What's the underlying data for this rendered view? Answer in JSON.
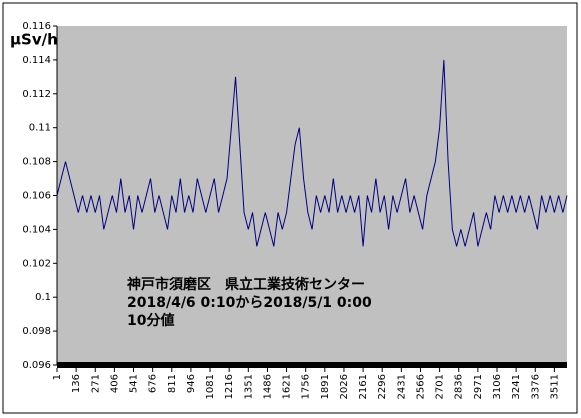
{
  "chart_data": {
    "type": "line",
    "title": "µSv/h",
    "annotations": [
      "神戸市須磨区　県立工業技術センター",
      "2018/4/6 0:10から2018/5/1 0:00",
      "10分値"
    ],
    "x": [
      1,
      31,
      61,
      91,
      121,
      151,
      181,
      211,
      241,
      271,
      301,
      331,
      361,
      391,
      421,
      451,
      481,
      511,
      541,
      571,
      601,
      631,
      661,
      691,
      721,
      751,
      781,
      811,
      841,
      871,
      901,
      931,
      961,
      991,
      1021,
      1051,
      1081,
      1111,
      1141,
      1171,
      1201,
      1231,
      1261,
      1291,
      1321,
      1351,
      1381,
      1411,
      1441,
      1471,
      1501,
      1531,
      1561,
      1591,
      1621,
      1651,
      1681,
      1711,
      1741,
      1771,
      1801,
      1831,
      1861,
      1891,
      1921,
      1951,
      1981,
      2011,
      2041,
      2071,
      2101,
      2131,
      2161,
      2191,
      2221,
      2251,
      2281,
      2311,
      2341,
      2371,
      2401,
      2431,
      2461,
      2491,
      2521,
      2551,
      2581,
      2611,
      2641,
      2671,
      2701,
      2731,
      2761,
      2791,
      2821,
      2851,
      2881,
      2911,
      2941,
      2971,
      3001,
      3031,
      3061,
      3091,
      3121,
      3151,
      3181,
      3211,
      3241,
      3271,
      3301,
      3331,
      3361,
      3391,
      3421,
      3451,
      3481,
      3511,
      3541,
      3571,
      3600
    ],
    "series": [
      {
        "color": "#000080",
        "values": [
          0.106,
          0.107,
          0.108,
          0.107,
          0.106,
          0.105,
          0.106,
          0.105,
          0.106,
          0.105,
          0.106,
          0.104,
          0.105,
          0.106,
          0.105,
          0.107,
          0.105,
          0.106,
          0.104,
          0.106,
          0.105,
          0.106,
          0.107,
          0.105,
          0.106,
          0.105,
          0.104,
          0.106,
          0.105,
          0.107,
          0.105,
          0.106,
          0.105,
          0.107,
          0.106,
          0.105,
          0.106,
          0.107,
          0.105,
          0.106,
          0.107,
          0.11,
          0.113,
          0.109,
          0.105,
          0.104,
          0.105,
          0.103,
          0.104,
          0.105,
          0.104,
          0.103,
          0.105,
          0.104,
          0.105,
          0.107,
          0.109,
          0.11,
          0.107,
          0.105,
          0.104,
          0.106,
          0.105,
          0.106,
          0.105,
          0.107,
          0.105,
          0.106,
          0.105,
          0.106,
          0.105,
          0.106,
          0.103,
          0.106,
          0.105,
          0.107,
          0.105,
          0.106,
          0.104,
          0.106,
          0.105,
          0.106,
          0.107,
          0.105,
          0.106,
          0.105,
          0.104,
          0.106,
          0.107,
          0.108,
          0.11,
          0.114,
          0.108,
          0.104,
          0.103,
          0.104,
          0.103,
          0.104,
          0.105,
          0.103,
          0.104,
          0.105,
          0.104,
          0.106,
          0.105,
          0.106,
          0.105,
          0.106,
          0.105,
          0.106,
          0.105,
          0.106,
          0.105,
          0.104,
          0.106,
          0.105,
          0.106,
          0.105,
          0.106,
          0.105,
          0.106
        ]
      }
    ],
    "xlim": [
      1,
      3600
    ],
    "xticks": [
      1,
      136,
      271,
      406,
      541,
      676,
      811,
      946,
      1081,
      1216,
      1351,
      1486,
      1621,
      1756,
      1891,
      2026,
      2161,
      2296,
      2431,
      2566,
      2701,
      2836,
      2971,
      3106,
      3241,
      3376,
      3511
    ],
    "ylim": [
      0.096,
      0.116
    ],
    "yticks": [
      0.096,
      0.098,
      0.1,
      0.102,
      0.104,
      0.106,
      0.108,
      0.11,
      0.112,
      0.114,
      0.116
    ]
  }
}
